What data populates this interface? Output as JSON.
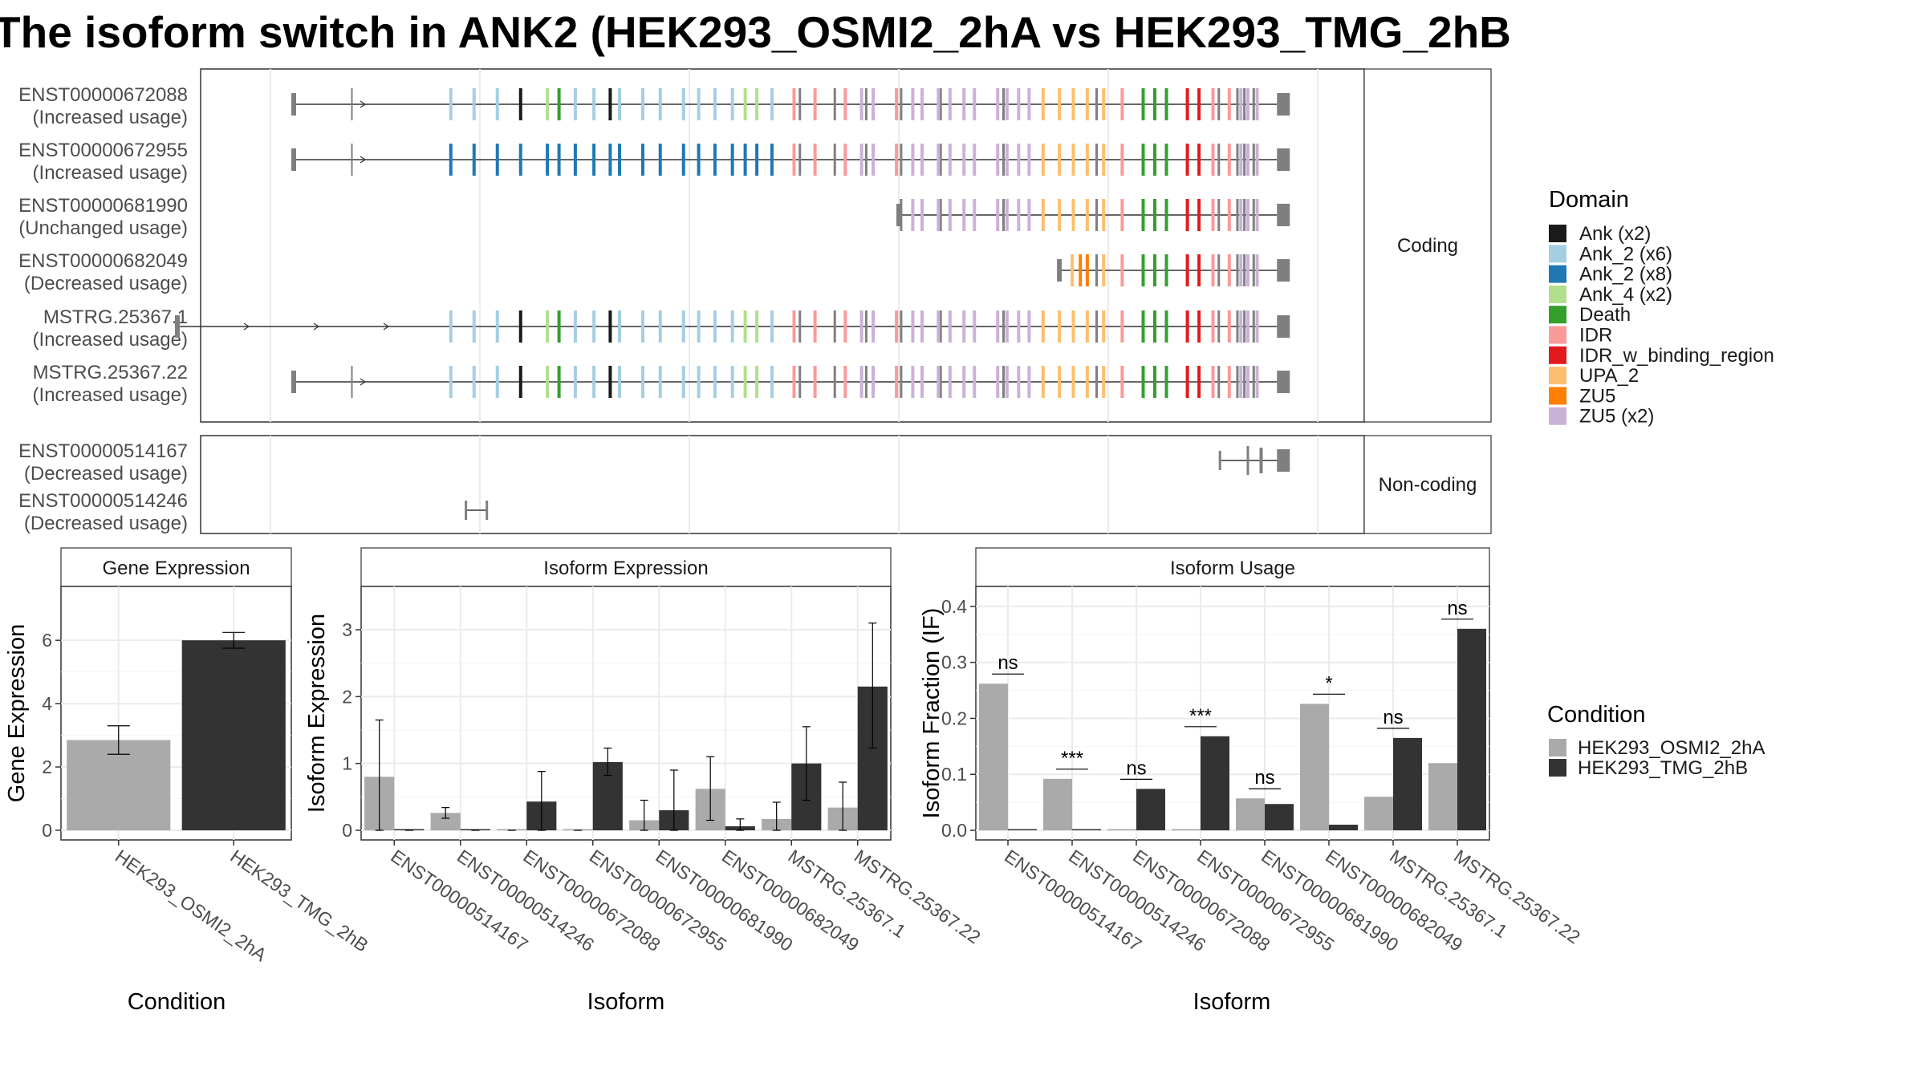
{
  "title": "The isoform switch in ANK2 (HEK293_OSMI2_2hA vs HEK293_TMG_2hB",
  "colors": {
    "Ank (x2)": "#1a1a1a",
    "Ank_2 (x6)": "#a6cee3",
    "Ank_2 (x8)": "#1f78b4",
    "Ank_4 (x2)": "#b2df8a",
    "Death": "#33a02c",
    "IDR": "#fb9a99",
    "IDR_w_binding_region": "#e31a1c",
    "UPA_2": "#fdbf6f",
    "ZU5": "#ff7f00",
    "ZU5 (x2)": "#cab2d6",
    "HEK293_OSMI2_2hA": "#aaaaaa",
    "HEK293_TMG_2hB": "#333333"
  },
  "structure": {
    "coding_strip": "Coding",
    "noncoding_strip": "Non-coding",
    "coding": [
      {
        "id": "ENST00000672088",
        "usage": "(Increased usage)",
        "start": 0.08,
        "variant": "A"
      },
      {
        "id": "ENST00000672955",
        "usage": "(Increased usage)",
        "start": 0.08,
        "variant": "B"
      },
      {
        "id": "ENST00000681990",
        "usage": "(Unchanged usage)",
        "start": 0.6,
        "variant": "C"
      },
      {
        "id": "ENST00000682049",
        "usage": "(Decreased usage)",
        "start": 0.738,
        "variant": "D"
      },
      {
        "id": "MSTRG.25367.1",
        "usage": "(Increased usage)",
        "start": -0.02,
        "variant": "A"
      },
      {
        "id": "MSTRG.25367.22",
        "usage": "(Increased usage)",
        "start": 0.08,
        "variant": "A"
      }
    ],
    "noncoding": [
      {
        "id": "ENST00000514167",
        "usage": "(Decreased usage)"
      },
      {
        "id": "ENST00000514246",
        "usage": "(Decreased usage)"
      }
    ]
  },
  "legend_domain": {
    "title": "Domain",
    "items": [
      "Ank (x2)",
      "Ank_2 (x6)",
      "Ank_2 (x8)",
      "Ank_4 (x2)",
      "Death",
      "IDR",
      "IDR_w_binding_region",
      "UPA_2",
      "ZU5",
      "ZU5 (x2)"
    ]
  },
  "legend_condition": {
    "title": "Condition",
    "items": [
      "HEK293_OSMI2_2hA",
      "HEK293_TMG_2hB"
    ]
  },
  "chart_data": [
    {
      "type": "bar",
      "title": "Gene Expression",
      "xlabel": "Condition",
      "ylabel": "Gene Expression",
      "ylim": [
        0,
        7.6
      ],
      "yticks": [
        0,
        2,
        4,
        6
      ],
      "categories": [
        "HEK293_OSMI2_2hA",
        "HEK293_TMG_2hB"
      ],
      "values": [
        2.85,
        6.0
      ],
      "errors": [
        [
          2.4,
          3.3
        ],
        [
          5.75,
          6.25
        ]
      ]
    },
    {
      "type": "bar",
      "title": "Isoform Expression",
      "xlabel": "Isoform",
      "ylabel": "Isoform Expression",
      "ylim": [
        0,
        3.6
      ],
      "yticks": [
        0,
        1,
        2,
        3
      ],
      "categories": [
        "ENST00000514167",
        "ENST00000514246",
        "ENST00000672088",
        "ENST00000672955",
        "ENST00000681990",
        "ENST00000682049",
        "MSTRG.25367.1",
        "MSTRG.25367.22"
      ],
      "series": [
        {
          "name": "HEK293_OSMI2_2hA",
          "values": [
            0.8,
            0.26,
            0.0,
            0.0,
            0.15,
            0.62,
            0.17,
            0.34
          ],
          "errors": [
            [
              0.0,
              1.65
            ],
            [
              0.18,
              0.34
            ],
            [
              0,
              0
            ],
            [
              0,
              0
            ],
            [
              0.0,
              0.45
            ],
            [
              0.15,
              1.1
            ],
            [
              0.0,
              0.42
            ],
            [
              0.0,
              0.72
            ]
          ]
        },
        {
          "name": "HEK293_TMG_2hB",
          "values": [
            0.0,
            0.0,
            0.43,
            1.02,
            0.3,
            0.06,
            1.0,
            2.15
          ],
          "errors": [
            [
              0,
              0
            ],
            [
              0,
              0
            ],
            [
              0.0,
              0.88
            ],
            [
              0.82,
              1.23
            ],
            [
              0.0,
              0.9
            ],
            [
              0.0,
              0.17
            ],
            [
              0.45,
              1.55
            ],
            [
              1.23,
              3.1
            ]
          ]
        }
      ]
    },
    {
      "type": "bar",
      "title": "Isoform Usage",
      "xlabel": "Isoform",
      "ylabel": "Isoform Fraction (IF)",
      "ylim": [
        0,
        0.43
      ],
      "yticks": [
        0.0,
        0.1,
        0.2,
        0.3,
        0.4
      ],
      "categories": [
        "ENST00000514167",
        "ENST00000514246",
        "ENST00000672088",
        "ENST00000672955",
        "ENST00000681990",
        "ENST00000682049",
        "MSTRG.25367.1",
        "MSTRG.25367.22"
      ],
      "series": [
        {
          "name": "HEK293_OSMI2_2hA",
          "values": [
            0.262,
            0.092,
            0.0,
            0.0,
            0.057,
            0.226,
            0.06,
            0.12
          ]
        },
        {
          "name": "HEK293_TMG_2hB",
          "values": [
            0.0,
            0.0,
            0.074,
            0.168,
            0.047,
            0.01,
            0.165,
            0.36
          ]
        }
      ],
      "significance": [
        "ns",
        "***",
        "ns",
        "***",
        "ns",
        "*",
        "ns",
        "ns"
      ]
    }
  ]
}
